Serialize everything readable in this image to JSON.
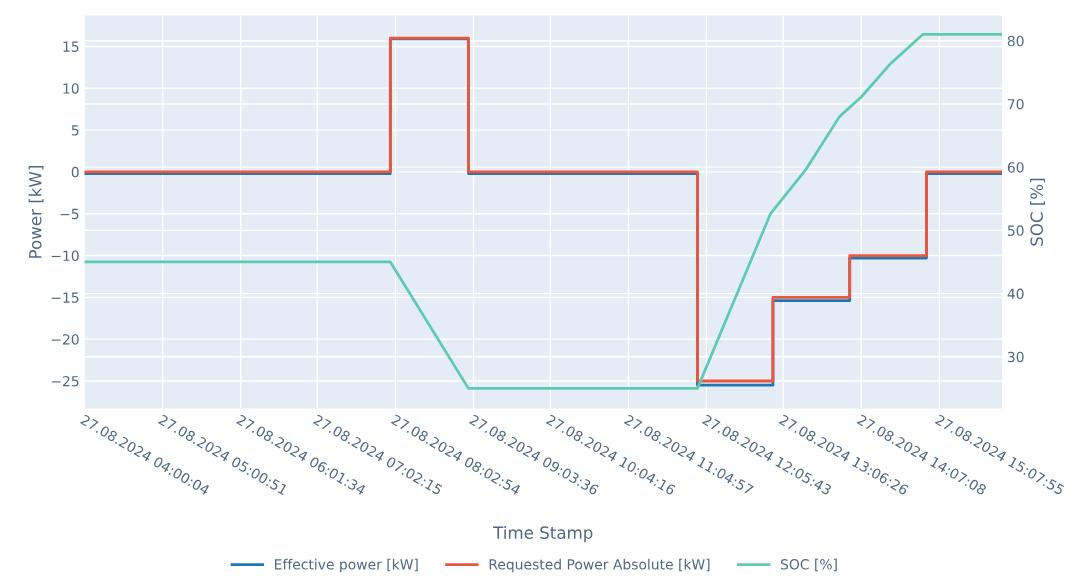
{
  "chart_data": {
    "type": "line",
    "xlabel": "Time Stamp",
    "ylabel": "Power [kW]",
    "y2label": "SOC [%]",
    "xlim": [
      "2024-08-27T04:00",
      "2024-08-27T15:57"
    ],
    "xticks": [
      {
        "value": "2024-08-27T04:00",
        "label": "27.08.2024 04:00:04"
      },
      {
        "value": "2024-08-27T05:01",
        "label": "27.08.2024 05:00:51"
      },
      {
        "value": "2024-08-27T06:02",
        "label": "27.08.2024 06:01:34"
      },
      {
        "value": "2024-08-27T07:02",
        "label": "27.08.2024 07:02:15"
      },
      {
        "value": "2024-08-27T08:03",
        "label": "27.08.2024 08:02:54"
      },
      {
        "value": "2024-08-27T09:04",
        "label": "27.08.2024 09:03:36"
      },
      {
        "value": "2024-08-27T10:04",
        "label": "27.08.2024 10:04:16"
      },
      {
        "value": "2024-08-27T11:05",
        "label": "27.08.2024 11:04:57"
      },
      {
        "value": "2024-08-27T12:06",
        "label": "27.08.2024 12:05:43"
      },
      {
        "value": "2024-08-27T13:06",
        "label": "27.08.2024 13:06:26"
      },
      {
        "value": "2024-08-27T14:07",
        "label": "27.08.2024 14:07:08"
      },
      {
        "value": "2024-08-27T15:08",
        "label": "27.08.2024 15:07:55"
      }
    ],
    "ylim": [
      -28.3,
      18.7
    ],
    "yticks": [
      -25,
      -20,
      -15,
      -10,
      -5,
      0,
      5,
      10,
      15
    ],
    "y2lim": [
      21.8,
      84.0
    ],
    "y2ticks": [
      30,
      40,
      50,
      60,
      70,
      80
    ],
    "grid": true,
    "legend": "bottom",
    "line_style": "solid",
    "marker": "none",
    "series": [
      {
        "name": "Effective power [kW]",
        "color": "#1f77b4",
        "x": [
          "2024-08-27T04:00",
          "2024-08-27T07:59",
          "2024-08-27T07:59",
          "2024-08-27T09:00",
          "2024-08-27T09:00",
          "2024-08-27T11:59",
          "2024-08-27T11:59",
          "2024-08-27T12:58",
          "2024-08-27T12:58",
          "2024-08-27T13:58",
          "2024-08-27T13:58",
          "2024-08-27T14:58",
          "2024-08-27T14:58",
          "2024-08-27T15:57"
        ],
        "values": [
          -0.2,
          -0.2,
          15.9,
          15.9,
          -0.2,
          -0.2,
          -25.5,
          -25.5,
          -15.4,
          -15.4,
          -10.3,
          -10.3,
          -0.2,
          -0.2
        ]
      },
      {
        "name": "Requested Power Absolute [kW]",
        "color": "#ef553b",
        "x": [
          "2024-08-27T04:00",
          "2024-08-27T07:59",
          "2024-08-27T07:59",
          "2024-08-27T09:00",
          "2024-08-27T09:00",
          "2024-08-27T11:59",
          "2024-08-27T11:59",
          "2024-08-27T12:58",
          "2024-08-27T12:58",
          "2024-08-27T13:58",
          "2024-08-27T13:58",
          "2024-08-27T14:58",
          "2024-08-27T14:58",
          "2024-08-27T15:57"
        ],
        "values": [
          0,
          0,
          16,
          16,
          0,
          0,
          -25,
          -25,
          -15,
          -15,
          -10,
          -10,
          0,
          0
        ]
      },
      {
        "name": "SOC [%]",
        "color": "#5ecbb1",
        "axis": "y2",
        "x": [
          "2024-08-27T04:00",
          "2024-08-27T07:59",
          "2024-08-27T09:00",
          "2024-08-27T11:59",
          "2024-08-27T12:30",
          "2024-08-27T12:56",
          "2024-08-27T13:24",
          "2024-08-27T13:50",
          "2024-08-27T14:07",
          "2024-08-27T14:29",
          "2024-08-27T14:55",
          "2024-08-27T15:57"
        ],
        "values": [
          45,
          45,
          25,
          25,
          40,
          52.6,
          59.7,
          68,
          71.1,
          76.2,
          81,
          81
        ]
      }
    ]
  }
}
